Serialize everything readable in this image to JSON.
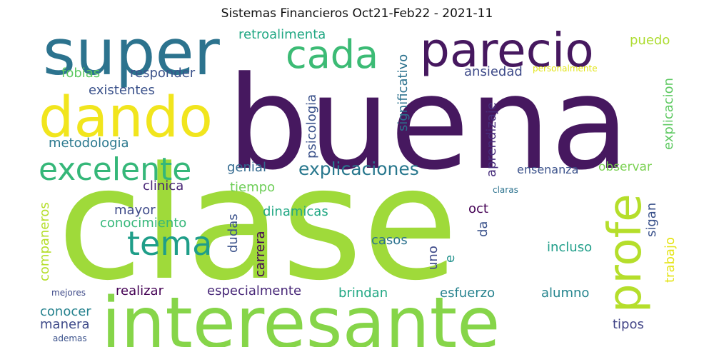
{
  "title": "Sistemas Financieros Oct21-Feb22 - 2021-11",
  "colors": {
    "dark_purple": "#440154",
    "purple": "#472d7b",
    "indigo": "#3b528b",
    "blue": "#2c728e",
    "teal": "#21918c",
    "green": "#28ae80",
    "light_green": "#5ec962",
    "lime": "#addc30",
    "yellow": "#fde725"
  },
  "words": {
    "clase": "clase",
    "buena": "buena",
    "interesante": "interesante",
    "super": "super",
    "dando": "dando",
    "parecio": "parecio",
    "cada": "cada",
    "profe": "profe",
    "excelente": "excelente",
    "tema": "tema",
    "explicaciones": "explicaciones",
    "retroalimenta": "retroalimenta",
    "fobias": "fobias",
    "responder": "responder",
    "existentes": "existentes",
    "ansiedad": "ansiedad",
    "personalmente": "personalmente",
    "puedo": "puedo",
    "significativo": "significativo",
    "psicologia": "psicologia",
    "aprendizaje": "aprendizaje",
    "explicacion": "explicacion",
    "metodologia": "metodologia",
    "genial": "genial",
    "ensenanza": "ensenanza",
    "observar": "observar",
    "clinica": "clinica",
    "tiempo": "tiempo",
    "claras": "claras",
    "mayor": "mayor",
    "dinamicas": "dinamicas",
    "oct": "oct",
    "sigan": "sigan",
    "conocimiento": "conocimiento",
    "companeros": "companeros",
    "dudas": "dudas",
    "carrera": "carrera",
    "casos": "casos",
    "da": "da",
    "uno": "uno",
    "e": "e",
    "incluso": "incluso",
    "trabajo": "trabajo",
    "realizar": "realizar",
    "especialmente": "especialmente",
    "brindan": "brindan",
    "esfuerzo": "esfuerzo",
    "alumno": "alumno",
    "mejores": "mejores",
    "conocer": "conocer",
    "manera": "manera",
    "tipos": "tipos",
    "ademas": "ademas"
  }
}
